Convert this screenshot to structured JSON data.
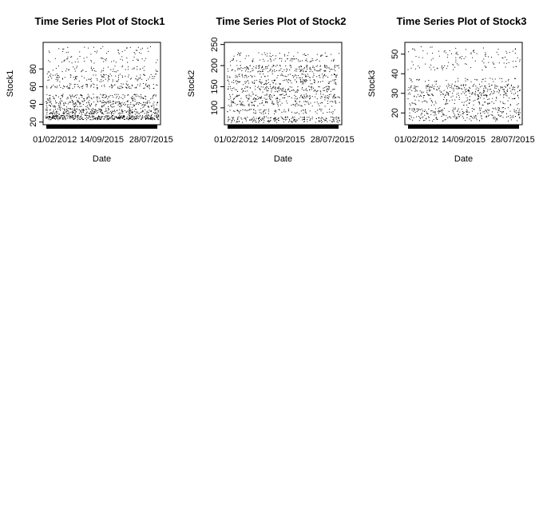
{
  "chart_data": [
    {
      "type": "scatter",
      "title": "Time Series Plot of Stock1",
      "xlabel": "Date",
      "ylabel": "Stock1",
      "x_tick_labels": [
        "01/02/2012",
        "14/09/2015",
        "28/07/2015"
      ],
      "y_ticks": [
        20,
        40,
        60,
        80
      ],
      "ylim": [
        17,
        110
      ],
      "grid": false,
      "legend": "none",
      "series": [
        {
          "bands": [
            {
              "y": [
                23,
                28
              ],
              "density": 2.6
            },
            {
              "y": [
                29,
                36
              ],
              "density": 1.8
            },
            {
              "y": [
                37,
                45
              ],
              "density": 1.5
            },
            {
              "y": [
                46,
                52
              ],
              "density": 0.9
            },
            {
              "y": [
                58,
                64
              ],
              "density": 0.8
            },
            {
              "y": [
                66,
                75
              ],
              "density": 0.8
            },
            {
              "y": [
                77,
                84
              ],
              "density": 0.4
            },
            {
              "y": [
                87,
                95
              ],
              "density": 0.35
            },
            {
              "y": [
                97,
                106
              ],
              "density": 0.3
            }
          ]
        }
      ]
    },
    {
      "type": "scatter",
      "title": "Time Series Plot of Stock2",
      "xlabel": "Date",
      "ylabel": "Stock2",
      "x_tick_labels": [
        "01/02/2012",
        "14/09/2015",
        "28/07/2015"
      ],
      "y_ticks": [
        100,
        150,
        200,
        250
      ],
      "ylim": [
        60,
        255
      ],
      "grid": false,
      "legend": "none",
      "series": [
        {
          "bands": [
            {
              "y": [
                66,
                80
              ],
              "density": 1.4
            },
            {
              "y": [
                86,
                98
              ],
              "density": 0.6
            },
            {
              "y": [
                104,
                118
              ],
              "density": 0.8
            },
            {
              "y": [
                120,
                134
              ],
              "density": 1.0
            },
            {
              "y": [
                138,
                152
              ],
              "density": 1.0
            },
            {
              "y": [
                156,
                168
              ],
              "density": 0.8
            },
            {
              "y": [
                172,
                182
              ],
              "density": 0.6
            },
            {
              "y": [
                186,
                202
              ],
              "density": 1.2
            },
            {
              "y": [
                210,
                218
              ],
              "density": 0.4
            },
            {
              "y": [
                222,
                232
              ],
              "density": 0.3
            }
          ]
        }
      ]
    },
    {
      "type": "scatter",
      "title": "Time Series Plot of Stock3",
      "xlabel": "Date",
      "ylabel": "Stock3",
      "x_tick_labels": [
        "01/02/2012",
        "14/09/2015",
        "28/07/2015"
      ],
      "y_ticks": [
        20,
        30,
        40,
        50
      ],
      "ylim": [
        14,
        56
      ],
      "grid": false,
      "legend": "none",
      "series": [
        {
          "bands": [
            {
              "y": [
                16,
                23
              ],
              "density": 1.8
            },
            {
              "y": [
                24,
                29
              ],
              "density": 0.8
            },
            {
              "y": [
                29,
                35
              ],
              "density": 1.8
            },
            {
              "y": [
                36,
                38
              ],
              "density": 0.3
            },
            {
              "y": [
                42,
                50
              ],
              "density": 0.6
            },
            {
              "y": [
                50,
                54
              ],
              "density": 0.3
            }
          ]
        }
      ]
    }
  ]
}
